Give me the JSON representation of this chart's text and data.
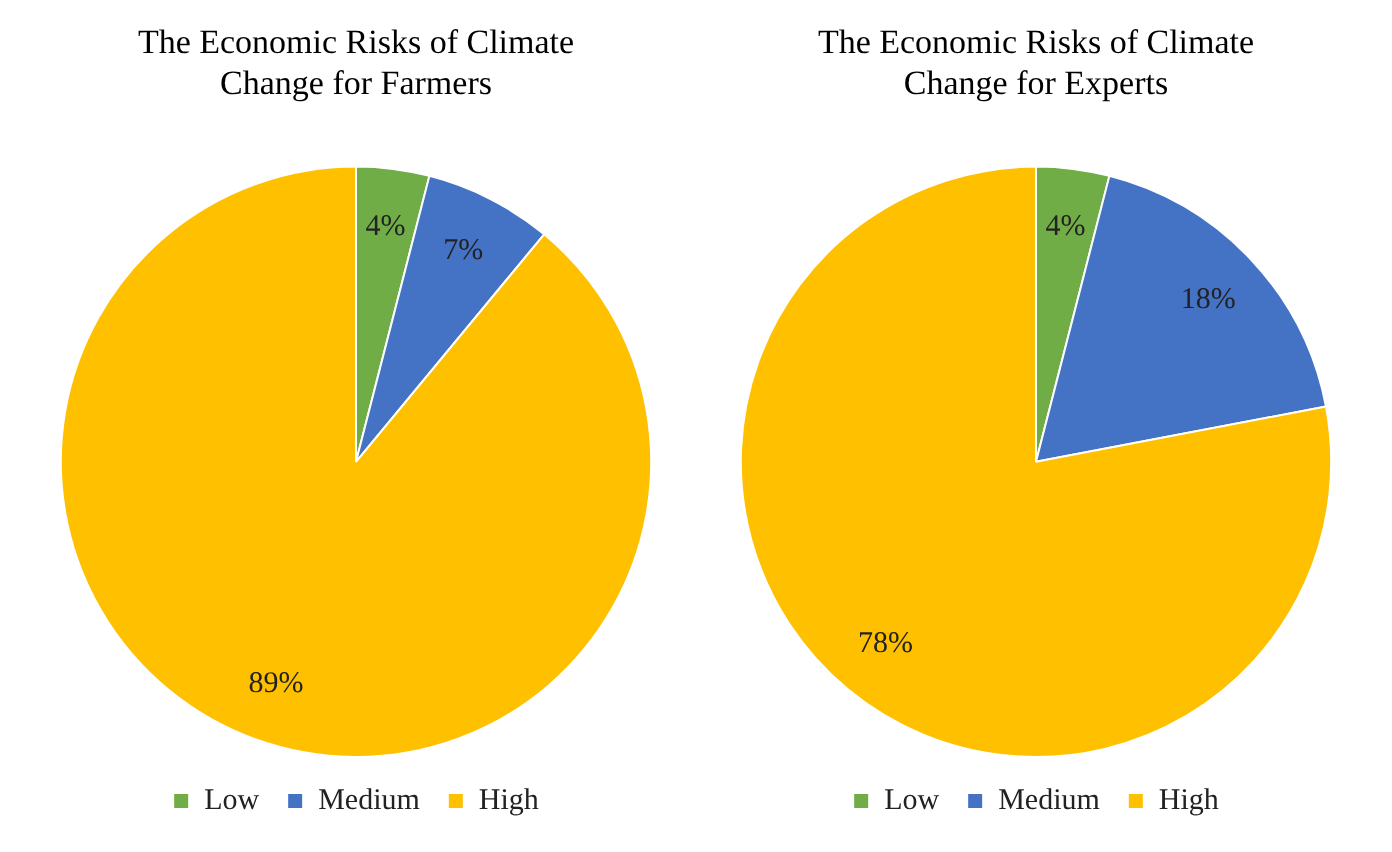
{
  "chart_data": [
    {
      "type": "pie",
      "title": "The Economic Risks of Climate Change for Farmers",
      "categories": [
        "Low",
        "Medium",
        "High"
      ],
      "values": [
        4,
        7,
        89
      ],
      "colors": [
        "#70ad47",
        "#4472c4",
        "#ffc000"
      ],
      "value_labels": [
        "4%",
        "7%",
        "89%"
      ],
      "legend": "bottom"
    },
    {
      "type": "pie",
      "title": "The Economic Risks of Climate Change for Experts",
      "categories": [
        "Low",
        "Medium",
        "High"
      ],
      "values": [
        4,
        18,
        78
      ],
      "colors": [
        "#70ad47",
        "#4472c4",
        "#ffc000"
      ],
      "value_labels": [
        "4%",
        "18%",
        "78%"
      ],
      "legend": "bottom"
    }
  ]
}
